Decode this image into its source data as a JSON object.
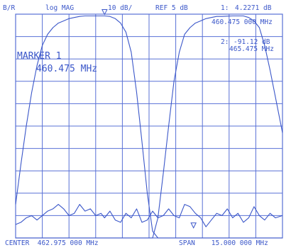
{
  "header": {
    "channel": "B/R",
    "format": "log MAG",
    "scale": "10 dB/",
    "ref": "REF 5 dB",
    "marker1_label": "1:",
    "marker1_value": "4.2271 dB",
    "marker1_freq": "460.475 000 MHz",
    "marker2_label": "2:",
    "marker2_value": "-91.12 dB",
    "marker2_freq": "465.475 MHz"
  },
  "marker_box": {
    "title": "MARKER 1",
    "freq": "460.475 MHz"
  },
  "footer": {
    "center": "CENTER  462.975 000 MHz",
    "span": "SPAN    15.000 000 MHz"
  },
  "colors": {
    "trace": "#3b57c9",
    "grid": "#5870d6",
    "background": "#ffffff"
  },
  "chart_data": {
    "type": "line",
    "title": "",
    "xlabel": "",
    "ylabel": "",
    "x_unit": "MHz",
    "xlim": [
      455.475,
      470.475
    ],
    "ylim": [
      -95,
      5
    ],
    "ref_level_db": 5,
    "scale_db_per_div": 10,
    "grid": true,
    "grid_divisions": {
      "x": 10,
      "y": 10
    },
    "markers": [
      {
        "id": 1,
        "x": 460.475,
        "y": 4.2271
      },
      {
        "id": 2,
        "x": 465.475,
        "y": -91.12
      }
    ],
    "series": [
      {
        "x": [
          455.475,
          455.775,
          456.075,
          456.375,
          456.675,
          456.975,
          457.275,
          457.575,
          457.875,
          458.175,
          458.475,
          458.775,
          459.075,
          459.375,
          459.675,
          459.975,
          460.275,
          460.475,
          460.775,
          461.075,
          461.375,
          461.675,
          461.975,
          462.275,
          462.575,
          462.875,
          463.175,
          463.475,
          463.775,
          464.075,
          464.375,
          464.675,
          464.975,
          465.275,
          465.575,
          465.875,
          466.175,
          466.475,
          466.775,
          467.075,
          467.375,
          467.675,
          467.975,
          468.275,
          468.575,
          468.875,
          469.175,
          469.475,
          469.775,
          470.075,
          470.475
        ],
        "y": [
          -89,
          -88,
          -86,
          -85,
          -87,
          -85,
          -83,
          -82,
          -80,
          -82,
          -85,
          -84,
          -80,
          -83,
          -82,
          -85,
          -84,
          -86,
          -83,
          -87,
          -88,
          -84,
          -86,
          -82,
          -88,
          -87,
          -83,
          -86,
          -85,
          -82,
          -85,
          -86,
          -80,
          -81,
          -84,
          -86,
          -90,
          -87,
          -84,
          -85,
          -82,
          -86,
          -84,
          -88,
          -86,
          -81,
          -85,
          -87,
          -84,
          -86,
          -85
        ]
      },
      {
        "x": [
          455.475,
          455.775,
          456.075,
          456.375,
          456.675,
          456.975,
          457.275,
          457.575,
          457.875,
          458.175,
          458.475,
          458.775,
          459.075,
          459.375,
          459.675,
          459.975,
          460.275,
          460.475,
          460.775,
          461.075,
          461.375,
          461.675,
          461.975,
          462.275,
          462.575,
          462.875,
          463.175,
          463.475,
          463.775,
          464.075,
          464.375,
          464.675,
          464.975,
          465.275,
          465.575,
          465.875,
          466.175,
          466.475,
          466.775,
          467.075,
          467.375,
          467.675,
          467.975,
          468.275,
          468.575,
          468.875,
          469.175,
          469.475,
          469.775,
          470.075,
          470.475
        ],
        "y": [
          -80,
          -62,
          -45,
          -30,
          -18,
          -9,
          -4,
          -1,
          1,
          2,
          3,
          3.5,
          4,
          4.2,
          4.2,
          4.2,
          4.2,
          4.2,
          4,
          3,
          1,
          -3,
          -12,
          -30,
          -52,
          -75,
          -92,
          -95,
          -95,
          -95,
          -95,
          -95,
          -95,
          -95,
          -95,
          -95,
          -95,
          -95,
          -95,
          -95,
          -95,
          -95,
          -95,
          -95,
          -95,
          -95,
          -95,
          -95,
          -95,
          -95,
          -95
        ]
      },
      {
        "x": [
          455.475,
          455.775,
          456.075,
          456.375,
          456.675,
          456.975,
          457.275,
          457.575,
          457.875,
          458.175,
          458.475,
          458.775,
          459.075,
          459.375,
          459.675,
          459.975,
          460.275,
          460.475,
          460.775,
          461.075,
          461.375,
          461.675,
          461.975,
          462.275,
          462.575,
          462.875,
          463.175,
          463.475,
          463.775,
          464.075,
          464.375,
          464.675,
          464.975,
          465.275,
          465.575,
          465.875,
          466.175,
          466.475,
          466.775,
          467.075,
          467.375,
          467.675,
          467.975,
          468.275,
          468.575,
          468.875,
          469.175,
          469.475,
          469.775,
          470.075,
          470.475
        ],
        "y": [
          -95,
          -95,
          -95,
          -95,
          -95,
          -95,
          -95,
          -95,
          -95,
          -95,
          -95,
          -95,
          -95,
          -95,
          -95,
          -95,
          -95,
          -95,
          -95,
          -95,
          -95,
          -95,
          -95,
          -95,
          -95,
          -95,
          -95,
          -86,
          -66,
          -45,
          -25,
          -12,
          -4,
          -1,
          1,
          2,
          3,
          3.5,
          4,
          4,
          4.1,
          4.2,
          4.2,
          4.2,
          3.5,
          2,
          -1,
          -9,
          -20,
          -32,
          -48
        ]
      }
    ]
  }
}
